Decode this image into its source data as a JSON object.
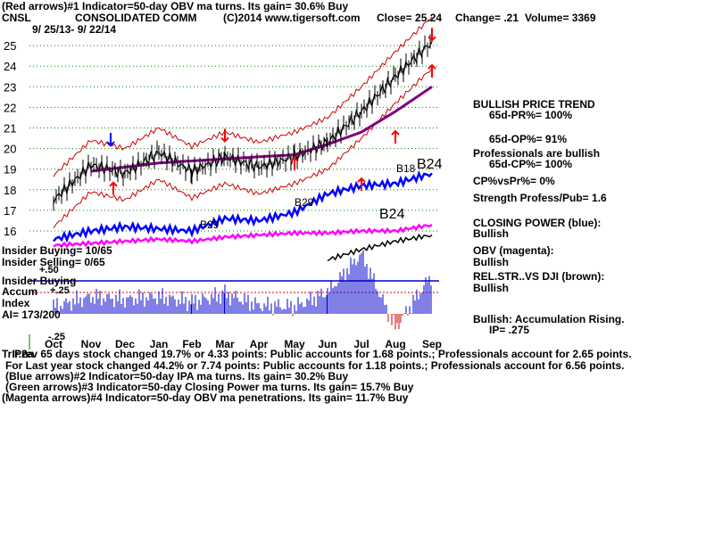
{
  "header": {
    "indicator1": "(Red arrows)#1 Indicator=50-day OBV ma turns. Its gain= 30.6% Buy",
    "symbol": "CNSL",
    "company": "CONSOLIDATED COMM",
    "copyright": "(C)2014 www.tigersoft.com",
    "close": "Close= 25.24",
    "change": "Change= .21",
    "volume": "Volume= 3369",
    "dates": "9/ 25/13- 9/ 22/14"
  },
  "right_panel": {
    "trend_title": "BULLISH PRICE TREND",
    "pr": "65d-PR%= 100%",
    "op": "65d-OP%= 91%",
    "pros_bullish": "Professionals are bullish",
    "cp": "65d-CP%= 100%",
    "cpvspr": "CP%vsPr%= 0%",
    "strength": "Strength Profess/Pub= 1.6",
    "closing_power_title": "CLOSING POWER (blue):",
    "closing_power_value": "Bullish",
    "obv_title": "OBV (magenta):",
    "obv_value": "Bullish",
    "relstr_title": "REL.STR..VS DJI (brown):",
    "relstr_value": "Bullish",
    "accum_title": "Bullish: Accumulation Rising.",
    "ip": "IP= .275"
  },
  "left_labels": {
    "insider_buying": "Insider Buying= 10/65",
    "insider_selling": "Insider Selling= 0/65",
    "insider_buying2": "Insider Buying",
    "accum": "Accum",
    "index": "Index",
    "ai": "AI= 173/200",
    "plus50": "+.50",
    "plus25": "+.25",
    "minus25": "-.25"
  },
  "annotations": {
    "b29_low": "B29",
    "b29_mid": "B29",
    "b18": "B18",
    "b24_upper": "B24",
    "b24_lower": "B24"
  },
  "footer": {
    "line1": "Prev 65 days stock changed 19.7% or 4.33 points: Public accounts for 1.68 points.; Professionals account for 2.65 points.",
    "line1_overlap": "TrIr.2a",
    "line2": "For Last year stock changed 44.2% or 7.74 points: Public accounts for 1.18 points.; Professionals account for 6.56 points.",
    "line3": "(Blue arrows)#2 Indicator=50-day IPA ma turns. Its gain= 30.2% Buy",
    "line4": "(Green arrows)#3 Indicator=50-day Closing Power ma turns. Its gain= 15.7% Buy",
    "line5": "(Magenta arrows)#4 Indicator=50-day OBV ma penetrations. Its gain= 11.7% Buy"
  },
  "colors": {
    "price": "#000000",
    "band": "#cc0000",
    "ma": "#800080",
    "closing_power": "#0000ff",
    "obv": "#ff00ff",
    "rel_str": "#000000",
    "accum_bars": "#0000cc",
    "accum_neg": "#cc0000",
    "grid": "#008000",
    "insider_line": "#0000cc"
  },
  "chart_data": {
    "type": "line",
    "title": "CONSOLIDATED COMM",
    "xlabel": "",
    "ylabel": "",
    "x_ticks": [
      "Oct",
      "Nov",
      "Dec",
      "Jan",
      "Feb",
      "Mar",
      "Apr",
      "May",
      "Jun",
      "Jul",
      "Aug",
      "Sep"
    ],
    "y_ticks": [
      16,
      17,
      18,
      19,
      20,
      21,
      22,
      23,
      24,
      25
    ],
    "ylim": [
      15.5,
      25.8
    ],
    "grid": true,
    "series": [
      {
        "name": "Price",
        "x": [
          "Oct",
          "Nov",
          "Dec",
          "Jan",
          "Feb",
          "Mar",
          "Apr",
          "May",
          "Jun",
          "Jul",
          "Aug",
          "Sep"
        ],
        "values": [
          17.5,
          19.2,
          18.8,
          19.8,
          18.9,
          19.6,
          19.1,
          19.6,
          20.3,
          21.8,
          23.5,
          25.2
        ]
      },
      {
        "name": "Moving average",
        "x": [
          "Nov",
          "Dec",
          "Jan",
          "Feb",
          "Mar",
          "Apr",
          "May",
          "Jun",
          "Jul",
          "Aug",
          "Sep"
        ],
        "values": [
          18.9,
          19.1,
          19.3,
          19.4,
          19.5,
          19.6,
          19.7,
          20.2,
          20.8,
          21.8,
          23.0
        ]
      },
      {
        "name": "CLOSING POWER (blue)",
        "x": [
          "Oct",
          "Nov",
          "Dec",
          "Jan",
          "Feb",
          "Mar",
          "Apr",
          "May",
          "Jun",
          "Jul",
          "Aug",
          "Sep"
        ],
        "values": [
          15.6,
          16.0,
          16.2,
          16.1,
          16.0,
          16.6,
          16.5,
          16.9,
          17.8,
          18.2,
          18.3,
          18.8
        ]
      },
      {
        "name": "OBV (magenta)",
        "x": [
          "Oct",
          "Nov",
          "Dec",
          "Jan",
          "Feb",
          "Mar",
          "Apr",
          "May",
          "Jun",
          "Jul",
          "Aug",
          "Sep"
        ],
        "values": [
          15.3,
          15.4,
          15.5,
          15.6,
          15.5,
          15.7,
          15.8,
          15.9,
          15.9,
          16.0,
          16.0,
          16.3
        ]
      },
      {
        "name": "REL.STR..VS DJI (brown)",
        "x": [
          "Jun",
          "Jul",
          "Aug",
          "Sep"
        ],
        "values": [
          14.6,
          15.1,
          15.5,
          15.8
        ]
      }
    ],
    "accumulation_index": {
      "x": [
        "Oct",
        "Nov",
        "Dec",
        "Jan",
        "Feb",
        "Mar",
        "Apr",
        "May",
        "Jun",
        "Jul",
        "Aug",
        "Sep"
      ],
      "values": [
        0.05,
        0.12,
        0.1,
        0.12,
        0.08,
        0.14,
        0.06,
        0.05,
        0.15,
        0.42,
        -0.1,
        0.275
      ]
    },
    "arrows": [
      {
        "color": "red",
        "dir": "up",
        "month": "Nov",
        "price": 18.0
      },
      {
        "color": "blue",
        "dir": "down",
        "month": "Nov",
        "price": 20.5
      },
      {
        "color": "red",
        "dir": "down",
        "month": "Mar",
        "price": 20.7
      },
      {
        "color": "red",
        "dir": "up",
        "month": "May",
        "price": 19.2
      },
      {
        "color": "red",
        "dir": "up",
        "month": "Jul",
        "price": 18.2
      },
      {
        "color": "red",
        "dir": "up",
        "month": "Aug",
        "price": 20.5
      },
      {
        "color": "red",
        "dir": "up",
        "month": "Sep",
        "price": 23.7
      },
      {
        "color": "red",
        "dir": "down",
        "month": "Sep",
        "price": 25.6
      }
    ]
  }
}
